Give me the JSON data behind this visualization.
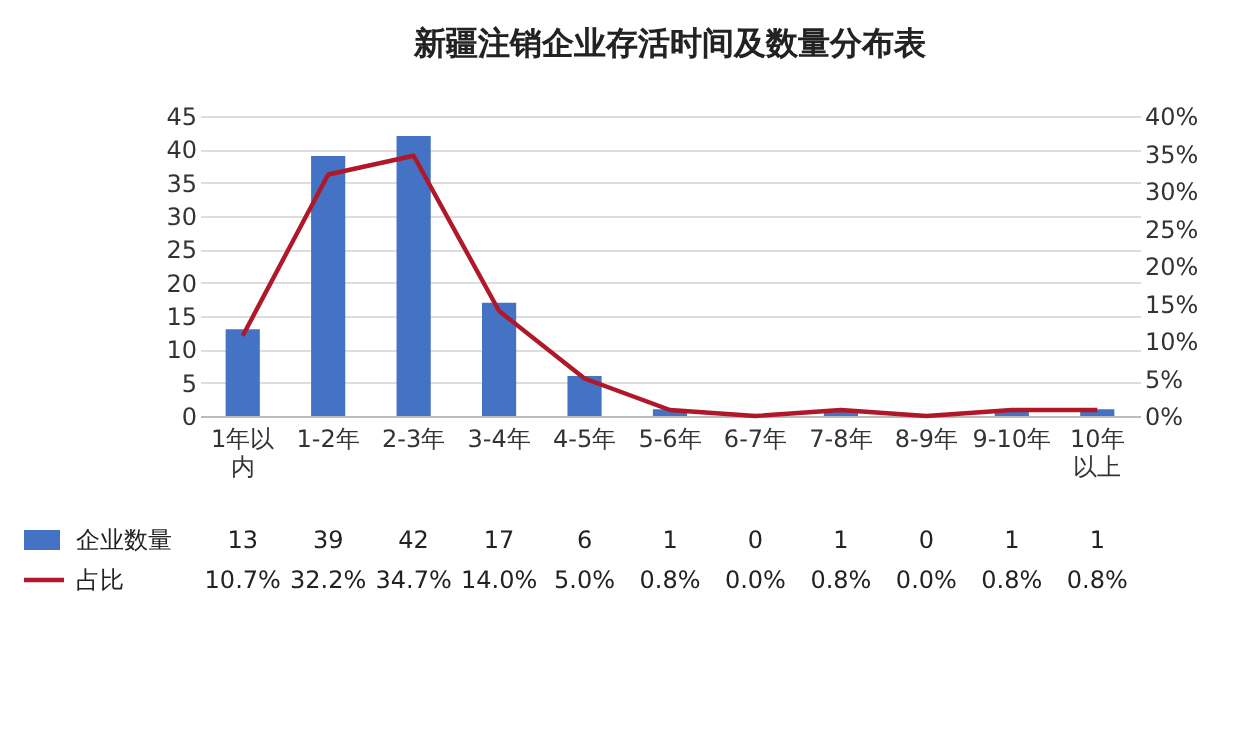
{
  "chart_data": {
    "type": "bar",
    "title": "新疆注销企业存活时间及数量分布表",
    "categories": [
      "1年以内",
      "1-2年",
      "2-3年",
      "3-4年",
      "4-5年",
      "5-6年",
      "6-7年",
      "7-8年",
      "8-9年",
      "9-10年",
      "10年以上"
    ],
    "series": [
      {
        "name": "企业数量",
        "color": "#4472c4",
        "values": [
          13,
          39,
          42,
          17,
          6,
          1,
          0,
          1,
          0,
          1,
          1
        ],
        "value_labels": [
          "13",
          "39",
          "42",
          "17",
          "6",
          "1",
          "0",
          "1",
          "0",
          "1",
          "1"
        ]
      },
      {
        "name": "占比",
        "type": "line",
        "axis": "y2",
        "color": "#b0182a",
        "values": [
          10.7,
          32.2,
          34.7,
          14.0,
          5.0,
          0.8,
          0.0,
          0.8,
          0.0,
          0.8,
          0.8
        ],
        "value_labels": [
          "10.7%",
          "32.2%",
          "34.7%",
          "14.0%",
          "5.0%",
          "0.8%",
          "0.0%",
          "0.8%",
          "0.0%",
          "0.8%",
          "0.8%"
        ]
      }
    ],
    "ylim": [
      0,
      45
    ],
    "yticks": [
      0,
      5,
      10,
      15,
      20,
      25,
      30,
      35,
      40,
      45
    ],
    "y2lim": [
      0,
      40
    ],
    "y2ticks": [
      {
        "value": 0,
        "label": "0%"
      },
      {
        "value": 5,
        "label": "5%"
      },
      {
        "value": 10,
        "label": "10%"
      },
      {
        "value": 15,
        "label": "15%"
      },
      {
        "value": 20,
        "label": "20%"
      },
      {
        "value": 25,
        "label": "25%"
      },
      {
        "value": 30,
        "label": "30%"
      },
      {
        "value": 35,
        "label": "35%"
      },
      {
        "value": 40,
        "label": "40%"
      }
    ],
    "grid": "y",
    "legend": "bottom",
    "marker": "none",
    "line_style": "solid"
  }
}
